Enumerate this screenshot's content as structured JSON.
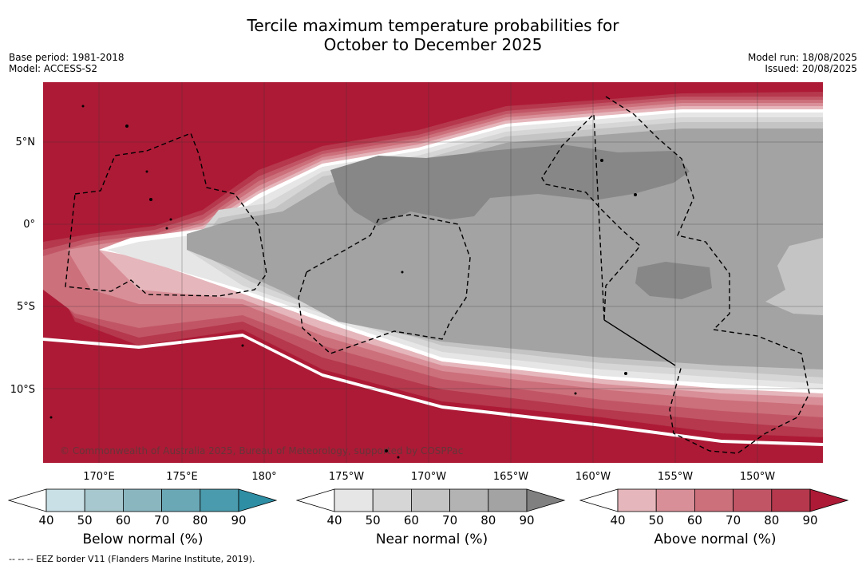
{
  "title_line1": "Tercile maximum temperature probabilities for",
  "title_line2": "October to December 2025",
  "meta_left": [
    "Base period: 1981-2018",
    "Model: ACCESS-S2"
  ],
  "meta_right": [
    "Model run: 18/08/2025",
    "Issued: 20/08/2025"
  ],
  "latitude_ticks": [
    "5°N",
    "0°",
    "5°S",
    "10°S"
  ],
  "longitude_ticks": [
    "170°E",
    "175°E",
    "180°",
    "175°W",
    "170°W",
    "165°W",
    "160°W",
    "155°W",
    "150°W"
  ],
  "copyright": "© Commonwealth of Australia 2025, Bureau of Meteorology, supported by COSPPac",
  "colorbars": [
    {
      "label": "Below normal (%)",
      "ticks": [
        "40",
        "50",
        "60",
        "70",
        "80",
        "90"
      ],
      "colors": [
        "#ffffff",
        "#c9e0e6",
        "#a8c8cf",
        "#8ab6c0",
        "#6aa8b6",
        "#4a9bad",
        "#2e8ea4"
      ]
    },
    {
      "label": "Near normal (%)",
      "ticks": [
        "40",
        "50",
        "60",
        "70",
        "80",
        "90"
      ],
      "colors": [
        "#ffffff",
        "#e6e6e6",
        "#d6d6d6",
        "#c4c4c4",
        "#b3b3b3",
        "#a3a3a3",
        "#808080"
      ]
    },
    {
      "label": "Above normal (%)",
      "ticks": [
        "40",
        "50",
        "60",
        "70",
        "80",
        "90"
      ],
      "colors": [
        "#ffffff",
        "#e5b6bb",
        "#d98f98",
        "#cc707b",
        "#c15566",
        "#b5384c",
        "#ad1a36"
      ]
    }
  ],
  "footer": "--  --  -- EEZ border V11 (Flanders Marine Institute, 2019)."
}
